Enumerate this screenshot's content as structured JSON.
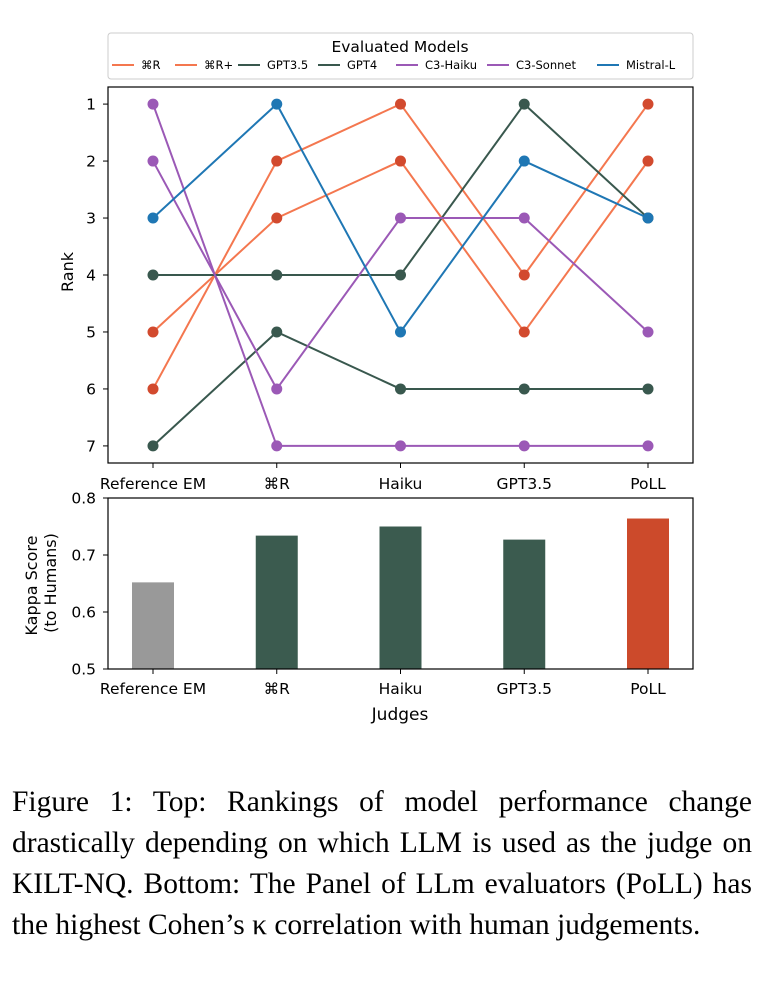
{
  "chart_data": [
    {
      "type": "line",
      "ylabel": "Rank",
      "categories": [
        "Reference EM",
        "⌘R",
        "Haiku",
        "GPT3.5",
        "PoLL"
      ],
      "y_ticks": [
        1,
        2,
        3,
        4,
        5,
        6,
        7
      ],
      "ylim": [
        7.3,
        0.7
      ],
      "y_inverted": true,
      "legend": {
        "title": "Evaluated Models",
        "placement": "top",
        "columns": 7
      },
      "series": [
        {
          "name": "⌘R",
          "color": "#f4774f",
          "values": [
            5,
            3,
            2,
            5,
            2
          ]
        },
        {
          "name": "⌘R+",
          "color": "#f4774f",
          "values": [
            6,
            2,
            1,
            4,
            1
          ]
        },
        {
          "name": "GPT3.5",
          "color": "#39584e",
          "values": [
            7,
            5,
            6,
            6,
            6
          ]
        },
        {
          "name": "GPT4",
          "color": "#39584e",
          "values": [
            4,
            4,
            4,
            1,
            3
          ]
        },
        {
          "name": "C3-Haiku",
          "color": "#9b59b6",
          "values": [
            1,
            7,
            7,
            7,
            7
          ]
        },
        {
          "name": "C3-Sonnet",
          "color": "#9b59b6",
          "values": [
            2,
            6,
            3,
            3,
            5
          ]
        },
        {
          "name": "Mistral-L",
          "color": "#1f77b4",
          "values": [
            3,
            1,
            5,
            2,
            3
          ]
        }
      ],
      "marker_color": "#d24a2e"
    },
    {
      "type": "bar",
      "xlabel": "Judges",
      "ylabel": "Kappa Score\n(to Humans)",
      "ylabel_lines": [
        "Kappa Score",
        "(to Humans)"
      ],
      "categories": [
        "Reference EM",
        "⌘R",
        "Haiku",
        "GPT3.5",
        "PoLL"
      ],
      "values": [
        0.652,
        0.734,
        0.75,
        0.727,
        0.764
      ],
      "colors": [
        "#999999",
        "#3b5b4f",
        "#3b5b4f",
        "#3b5b4f",
        "#cc4a2b"
      ],
      "ylim": [
        0.5,
        0.8
      ],
      "y_ticks": [
        "0.5",
        "0.6",
        "0.7",
        "0.8"
      ]
    }
  ],
  "caption": "Figure 1: Top: Rankings of model performance change drastically depending on which LLM is used as the judge on KILT-NQ. Bottom: The Panel of LLm evaluators (PoLL) has the highest Cohen’s κ correlation with human judgements."
}
